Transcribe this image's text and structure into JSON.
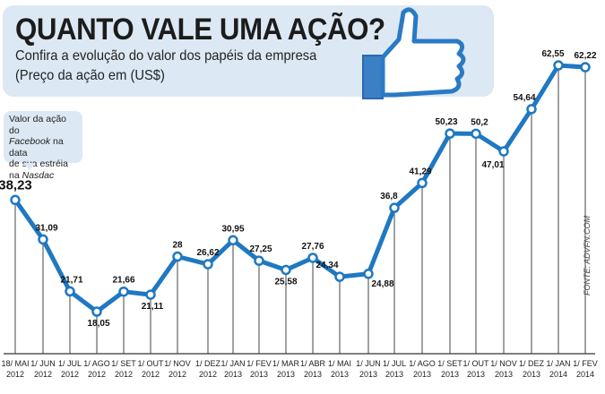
{
  "header": {
    "title": "QUANTO VALE UMA AÇÃO?",
    "subtitle": "Confira a evolução do valor dos papéis da empresa",
    "unit_note": "(Preço da ação em (US$)",
    "icon": "thumbs-up-icon"
  },
  "annotation": {
    "line1": "Valor da ação do",
    "company": "Facebook",
    "line2": " na data",
    "line3": "de sua estréia",
    "line4a": "na ",
    "exchange": "Nasdac"
  },
  "source": "FONTE: ADVFN.COM",
  "chart_data": {
    "type": "line",
    "title": "QUANTO VALE UMA AÇÃO?",
    "ylabel": "Preço da ação (US$)",
    "xlabel": "",
    "ylim": [
      18.05,
      62.55
    ],
    "grid": false,
    "color": "#1f78c1",
    "categories": [
      [
        "18/ MAI",
        "2012"
      ],
      [
        "1/ JUN",
        "2012"
      ],
      [
        "1/ JUL",
        "2012"
      ],
      [
        "1/ AGO",
        "2012"
      ],
      [
        "1/ SET",
        "2012"
      ],
      [
        "1/ OUT",
        "2012"
      ],
      [
        "1/ NOV",
        "2012"
      ],
      [
        "1/ DEZ",
        "2012"
      ],
      [
        "1/ JAN",
        "2013"
      ],
      [
        "1/ FEV",
        "2013"
      ],
      [
        "1/ MAR",
        "2013"
      ],
      [
        "1/ ABR",
        "2013"
      ],
      [
        "1/ MAI",
        "2013"
      ],
      [
        "1/ JUN",
        "2013"
      ],
      [
        "1/ JUL",
        "2013"
      ],
      [
        "1/ AGO",
        "2013"
      ],
      [
        "1/ SET",
        "2013"
      ],
      [
        "1/ OUT",
        "2013"
      ],
      [
        "1/ NOV",
        "2013"
      ],
      [
        "1/ DEZ",
        "2013"
      ],
      [
        "1/ JAN",
        "2014"
      ],
      [
        "1/ FEV",
        "2014"
      ]
    ],
    "values": [
      38.23,
      31.09,
      21.71,
      18.05,
      21.66,
      21.11,
      28,
      26.62,
      30.95,
      27.25,
      25.58,
      27.76,
      24.34,
      24.88,
      36.8,
      41.29,
      50.23,
      50.2,
      47.01,
      54.64,
      62.55,
      62.22
    ],
    "labels": [
      "38,23",
      "31,09",
      "21,71",
      "18,05",
      "21,66",
      "21,11",
      "28",
      "26,62",
      "30,95",
      "27,25",
      "25,58",
      "27,76",
      "24,34",
      "24,88",
      "36,8",
      "41,29",
      "50,23",
      "50,2",
      "47,01",
      "54,64",
      "62,55",
      "62,22"
    ]
  }
}
